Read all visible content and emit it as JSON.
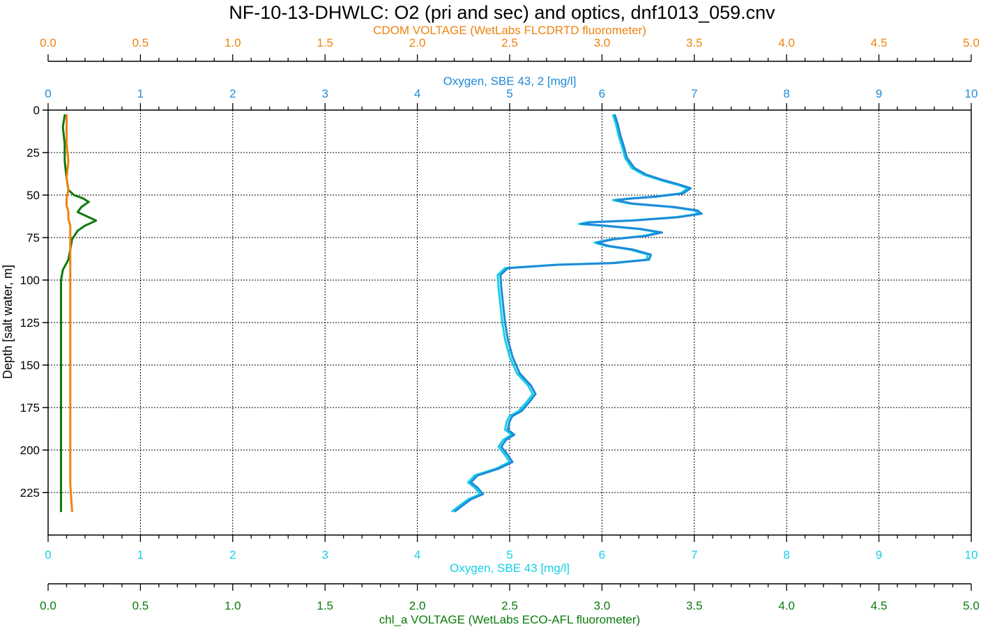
{
  "chart_data": {
    "type": "line",
    "title": "NF-10-13-DHWLC: O2 (pri and sec) and optics, dnf1013_059.cnv",
    "ylabel": "Depth [salt water, m]",
    "ylim": [
      0,
      250
    ],
    "y_inverted": true,
    "y_ticks": [
      0,
      25,
      50,
      75,
      100,
      125,
      150,
      175,
      200,
      225
    ],
    "grid": true,
    "x_axes": [
      {
        "id": "cdom",
        "position": "top-outer",
        "label": "CDOM VOLTAGE (WetLabs FLCDRTD fluorometer)",
        "color": "#f0820f",
        "range": [
          0,
          5
        ],
        "ticks": [
          "0.0",
          "0.5",
          "1.0",
          "1.5",
          "2.0",
          "2.5",
          "3.0",
          "3.5",
          "4.0",
          "4.5",
          "5.0"
        ]
      },
      {
        "id": "oxy2",
        "position": "top-inner",
        "label": "Oxygen, SBE 43, 2 [mg/l]",
        "color": "#1f8ad8",
        "range": [
          0,
          10
        ],
        "ticks": [
          "0",
          "1",
          "2",
          "3",
          "4",
          "5",
          "6",
          "7",
          "8",
          "9",
          "10"
        ]
      },
      {
        "id": "oxy1",
        "position": "bottom-inner",
        "label": "Oxygen, SBE 43 [mg/l]",
        "color": "#14d0e6",
        "range": [
          0,
          10
        ],
        "ticks": [
          "0",
          "1",
          "2",
          "3",
          "4",
          "5",
          "6",
          "7",
          "8",
          "9",
          "10"
        ]
      },
      {
        "id": "chl",
        "position": "bottom-outer",
        "label": "chl_a VOLTAGE (WetLabs ECO-AFL fluorometer)",
        "color": "#0a7a0a",
        "range": [
          0,
          5
        ],
        "ticks": [
          "0.0",
          "0.5",
          "1.0",
          "1.5",
          "2.0",
          "2.5",
          "3.0",
          "3.5",
          "4.0",
          "4.5",
          "5.0"
        ]
      }
    ],
    "series": [
      {
        "axis": "oxy1",
        "color": "#14d0e6",
        "points": [
          [
            6.12,
            3
          ],
          [
            6.15,
            8
          ],
          [
            6.18,
            15
          ],
          [
            6.22,
            22
          ],
          [
            6.25,
            28
          ],
          [
            6.32,
            34
          ],
          [
            6.45,
            38
          ],
          [
            6.62,
            41
          ],
          [
            6.82,
            44
          ],
          [
            6.93,
            46
          ],
          [
            6.85,
            49
          ],
          [
            6.55,
            51
          ],
          [
            6.3,
            52
          ],
          [
            6.12,
            53
          ],
          [
            6.3,
            55
          ],
          [
            6.75,
            57
          ],
          [
            7.0,
            59
          ],
          [
            7.05,
            61
          ],
          [
            6.8,
            63
          ],
          [
            6.3,
            65
          ],
          [
            5.85,
            66
          ],
          [
            5.75,
            67
          ],
          [
            6.0,
            68
          ],
          [
            6.4,
            70
          ],
          [
            6.62,
            72
          ],
          [
            6.45,
            74
          ],
          [
            6.1,
            76
          ],
          [
            5.92,
            78
          ],
          [
            6.05,
            80
          ],
          [
            6.3,
            82
          ],
          [
            6.5,
            85
          ],
          [
            6.48,
            88
          ],
          [
            6.1,
            90
          ],
          [
            5.5,
            91
          ],
          [
            4.95,
            93
          ],
          [
            4.87,
            97
          ],
          [
            4.88,
            105
          ],
          [
            4.9,
            115
          ],
          [
            4.92,
            125
          ],
          [
            4.95,
            135
          ],
          [
            5.0,
            145
          ],
          [
            5.08,
            155
          ],
          [
            5.2,
            162
          ],
          [
            5.25,
            167
          ],
          [
            5.18,
            172
          ],
          [
            5.1,
            177
          ],
          [
            5.0,
            180
          ],
          [
            4.97,
            183
          ],
          [
            4.95,
            188
          ],
          [
            5.02,
            191
          ],
          [
            4.93,
            194
          ],
          [
            4.88,
            198
          ],
          [
            4.95,
            203
          ],
          [
            5.0,
            207
          ],
          [
            4.85,
            211
          ],
          [
            4.62,
            215
          ],
          [
            4.55,
            219
          ],
          [
            4.62,
            222
          ],
          [
            4.68,
            226
          ],
          [
            4.55,
            229
          ],
          [
            4.45,
            233
          ],
          [
            4.38,
            236
          ]
        ]
      },
      {
        "axis": "oxy2",
        "color": "#1f8ad8",
        "points": [
          [
            6.14,
            3
          ],
          [
            6.17,
            8
          ],
          [
            6.2,
            15
          ],
          [
            6.24,
            22
          ],
          [
            6.27,
            28
          ],
          [
            6.35,
            34
          ],
          [
            6.48,
            38
          ],
          [
            6.65,
            41
          ],
          [
            6.85,
            44
          ],
          [
            6.96,
            46
          ],
          [
            6.88,
            49
          ],
          [
            6.58,
            51
          ],
          [
            6.33,
            52
          ],
          [
            6.15,
            53
          ],
          [
            6.33,
            55
          ],
          [
            6.78,
            57
          ],
          [
            7.03,
            59
          ],
          [
            7.08,
            61
          ],
          [
            6.83,
            63
          ],
          [
            6.33,
            65
          ],
          [
            5.88,
            66
          ],
          [
            5.78,
            67
          ],
          [
            6.03,
            68
          ],
          [
            6.43,
            70
          ],
          [
            6.65,
            72
          ],
          [
            6.48,
            74
          ],
          [
            6.13,
            76
          ],
          [
            5.95,
            78
          ],
          [
            6.08,
            80
          ],
          [
            6.33,
            82
          ],
          [
            6.53,
            85
          ],
          [
            6.51,
            88
          ],
          [
            6.13,
            90
          ],
          [
            5.53,
            91
          ],
          [
            4.98,
            93
          ],
          [
            4.9,
            97
          ],
          [
            4.91,
            105
          ],
          [
            4.93,
            115
          ],
          [
            4.95,
            125
          ],
          [
            4.98,
            135
          ],
          [
            5.03,
            145
          ],
          [
            5.11,
            155
          ],
          [
            5.23,
            162
          ],
          [
            5.28,
            167
          ],
          [
            5.21,
            172
          ],
          [
            5.13,
            177
          ],
          [
            5.03,
            180
          ],
          [
            5.0,
            183
          ],
          [
            4.98,
            188
          ],
          [
            5.05,
            191
          ],
          [
            4.96,
            194
          ],
          [
            4.91,
            198
          ],
          [
            4.98,
            203
          ],
          [
            5.03,
            207
          ],
          [
            4.88,
            211
          ],
          [
            4.65,
            215
          ],
          [
            4.58,
            219
          ],
          [
            4.65,
            222
          ],
          [
            4.71,
            226
          ],
          [
            4.58,
            229
          ],
          [
            4.48,
            233
          ],
          [
            4.41,
            236
          ]
        ]
      },
      {
        "axis": "chl",
        "color": "#0a7a0a",
        "points": [
          [
            0.09,
            3
          ],
          [
            0.08,
            10
          ],
          [
            0.09,
            20
          ],
          [
            0.09,
            30
          ],
          [
            0.1,
            40
          ],
          [
            0.11,
            47
          ],
          [
            0.14,
            50
          ],
          [
            0.19,
            52
          ],
          [
            0.22,
            54
          ],
          [
            0.18,
            57
          ],
          [
            0.16,
            60
          ],
          [
            0.2,
            62
          ],
          [
            0.26,
            65
          ],
          [
            0.2,
            68
          ],
          [
            0.16,
            71
          ],
          [
            0.13,
            76
          ],
          [
            0.12,
            82
          ],
          [
            0.11,
            88
          ],
          [
            0.08,
            94
          ],
          [
            0.07,
            100
          ],
          [
            0.07,
            110
          ],
          [
            0.07,
            130
          ],
          [
            0.07,
            160
          ],
          [
            0.07,
            190
          ],
          [
            0.07,
            220
          ],
          [
            0.07,
            236
          ]
        ]
      },
      {
        "axis": "cdom",
        "color": "#f0820f",
        "points": [
          [
            0.1,
            3
          ],
          [
            0.1,
            10
          ],
          [
            0.1,
            20
          ],
          [
            0.11,
            30
          ],
          [
            0.1,
            40
          ],
          [
            0.11,
            47
          ],
          [
            0.1,
            52
          ],
          [
            0.1,
            56
          ],
          [
            0.11,
            60
          ],
          [
            0.11,
            64
          ],
          [
            0.12,
            68
          ],
          [
            0.12,
            72
          ],
          [
            0.12,
            80
          ],
          [
            0.12,
            100
          ],
          [
            0.12,
            130
          ],
          [
            0.12,
            160
          ],
          [
            0.12,
            190
          ],
          [
            0.12,
            220
          ],
          [
            0.13,
            236
          ]
        ]
      }
    ]
  }
}
